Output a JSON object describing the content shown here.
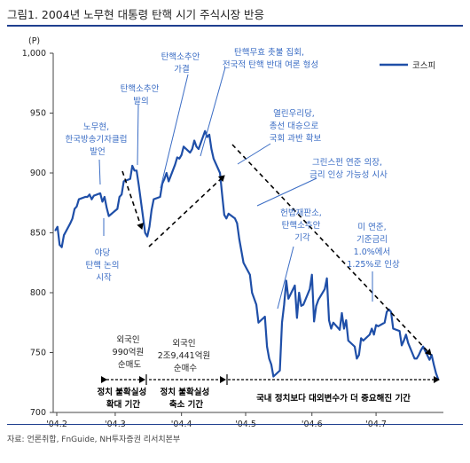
{
  "figure_title": "그림1. 2004년 노무현 대통령 탄핵 시기 주식시장 반응",
  "source": "자료: 언론취합, FnGuide, NH투자증권 리서치본부",
  "colors": {
    "line": "#1f4fa8",
    "annotation": "#3a6cc4",
    "rule": "#1f3f8f",
    "arrow": "#000000"
  },
  "chart_data": {
    "type": "line",
    "y_unit": "(P)",
    "ylim": [
      700,
      1000
    ],
    "yticks": [
      700,
      750,
      800,
      850,
      900,
      950,
      1000
    ],
    "ytick_labels": [
      "700",
      "750",
      "800",
      "850",
      "900",
      "950",
      "1,000"
    ],
    "xtick_labels": [
      "'04.2",
      "'04.3",
      "'04.4",
      "'04.5",
      "'04.6",
      "'04.7"
    ],
    "grid": false,
    "legend_position": "top-right",
    "series": [
      {
        "name": "코스피",
        "x": [
          "2004-02-02",
          "2004-02-03",
          "2004-02-04",
          "2004-02-05",
          "2004-02-06",
          "2004-02-09",
          "2004-02-10",
          "2004-02-11",
          "2004-02-12",
          "2004-02-13",
          "2004-02-16",
          "2004-02-17",
          "2004-02-18",
          "2004-02-19",
          "2004-02-20",
          "2004-02-23",
          "2004-02-24",
          "2004-02-25",
          "2004-02-26",
          "2004-02-27",
          "2004-03-02",
          "2004-03-03",
          "2004-03-04",
          "2004-03-05",
          "2004-03-08",
          "2004-03-09",
          "2004-03-10",
          "2004-03-11",
          "2004-03-12",
          "2004-03-15",
          "2004-03-16",
          "2004-03-17",
          "2004-03-18",
          "2004-03-19",
          "2004-03-22",
          "2004-03-23",
          "2004-03-24",
          "2004-03-25",
          "2004-03-26",
          "2004-03-29",
          "2004-03-30",
          "2004-03-31",
          "2004-04-01",
          "2004-04-02",
          "2004-04-05",
          "2004-04-06",
          "2004-04-07",
          "2004-04-08",
          "2004-04-09",
          "2004-04-12",
          "2004-04-13",
          "2004-04-14",
          "2004-04-15",
          "2004-04-16",
          "2004-04-19",
          "2004-04-20",
          "2004-04-21",
          "2004-04-22",
          "2004-04-23",
          "2004-04-26",
          "2004-04-27",
          "2004-04-28",
          "2004-04-29",
          "2004-04-30",
          "2004-05-03",
          "2004-05-04",
          "2004-05-06",
          "2004-05-07",
          "2004-05-10",
          "2004-05-11",
          "2004-05-12",
          "2004-05-13",
          "2004-05-14",
          "2004-05-17",
          "2004-05-18",
          "2004-05-19",
          "2004-05-20",
          "2004-05-21",
          "2004-05-24",
          "2004-05-25",
          "2004-05-26",
          "2004-05-27",
          "2004-05-28",
          "2004-05-31",
          "2004-06-01",
          "2004-06-02",
          "2004-06-03",
          "2004-06-04",
          "2004-06-07",
          "2004-06-08",
          "2004-06-09",
          "2004-06-10",
          "2004-06-11",
          "2004-06-14",
          "2004-06-15",
          "2004-06-16",
          "2004-06-17",
          "2004-06-18",
          "2004-06-21",
          "2004-06-22",
          "2004-06-23",
          "2004-06-24",
          "2004-06-25",
          "2004-06-28",
          "2004-06-29",
          "2004-06-30",
          "2004-07-01",
          "2004-07-02",
          "2004-07-05",
          "2004-07-06",
          "2004-07-07",
          "2004-07-08",
          "2004-07-09",
          "2004-07-12",
          "2004-07-13",
          "2004-07-14",
          "2004-07-15",
          "2004-07-16",
          "2004-07-19",
          "2004-07-20",
          "2004-07-21",
          "2004-07-22",
          "2004-07-23",
          "2004-07-26",
          "2004-07-27",
          "2004-07-28",
          "2004-07-29",
          "2004-07-30"
        ],
        "values": [
          852,
          855,
          840,
          838,
          848,
          858,
          862,
          870,
          872,
          878,
          880,
          880,
          882,
          878,
          881,
          883,
          876,
          880,
          871,
          864,
          870,
          880,
          882,
          893,
          895,
          906,
          902,
          902,
          890,
          850,
          847,
          855,
          869,
          878,
          880,
          891,
          895,
          900,
          893,
          907,
          913,
          912,
          915,
          922,
          917,
          920,
          927,
          922,
          920,
          935,
          930,
          932,
          920,
          912,
          900,
          882,
          865,
          862,
          866,
          862,
          858,
          845,
          835,
          825,
          815,
          800,
          790,
          775,
          780,
          755,
          745,
          740,
          730,
          735,
          775,
          790,
          810,
          795,
          806,
          779,
          800,
          789,
          790,
          803,
          815,
          776,
          789,
          794,
          803,
          812,
          777,
          770,
          775,
          769,
          783,
          770,
          777,
          760,
          755,
          745,
          748,
          762,
          760,
          765,
          770,
          765,
          773,
          772,
          775,
          784,
          786,
          784,
          770,
          768,
          756,
          760,
          765,
          758,
          745,
          745,
          748,
          752,
          755,
          744,
          748,
          740,
          733,
          728
        ]
      }
    ],
    "annotations": [
      [
        "노무현,",
        "한국방송기자클럽",
        "발언"
      ],
      [
        "탄핵소추안",
        "발의"
      ],
      [
        "탄핵소추안",
        "가결"
      ],
      [
        "탄핵무효 촛불 집회,",
        "전국적 탄핵 반대 여론 형성"
      ],
      [
        "열린우리당,",
        "총선 대승으로",
        "국회 과반 확보"
      ],
      [
        "그린스펀 연준 의장,",
        "금리 인상 가능성 시사"
      ],
      [
        "헌법재판소,",
        "탄핵소추안",
        "기각"
      ],
      [
        "미 연준,",
        "기준금리",
        "1.0%에서",
        "1.25%로 인상"
      ],
      [
        "야당",
        "탄핵 논의",
        "시작"
      ],
      [
        "외국인",
        "990억원",
        "순매도"
      ],
      [
        "외국인",
        "2조9,441억원",
        "순매수"
      ]
    ],
    "periods": [
      "정치 불확실성",
      "확대 기간",
      "정치 불확실성",
      "축소 기간",
      "국내 정치보다 대외변수가 더 중요해진 기간"
    ]
  }
}
